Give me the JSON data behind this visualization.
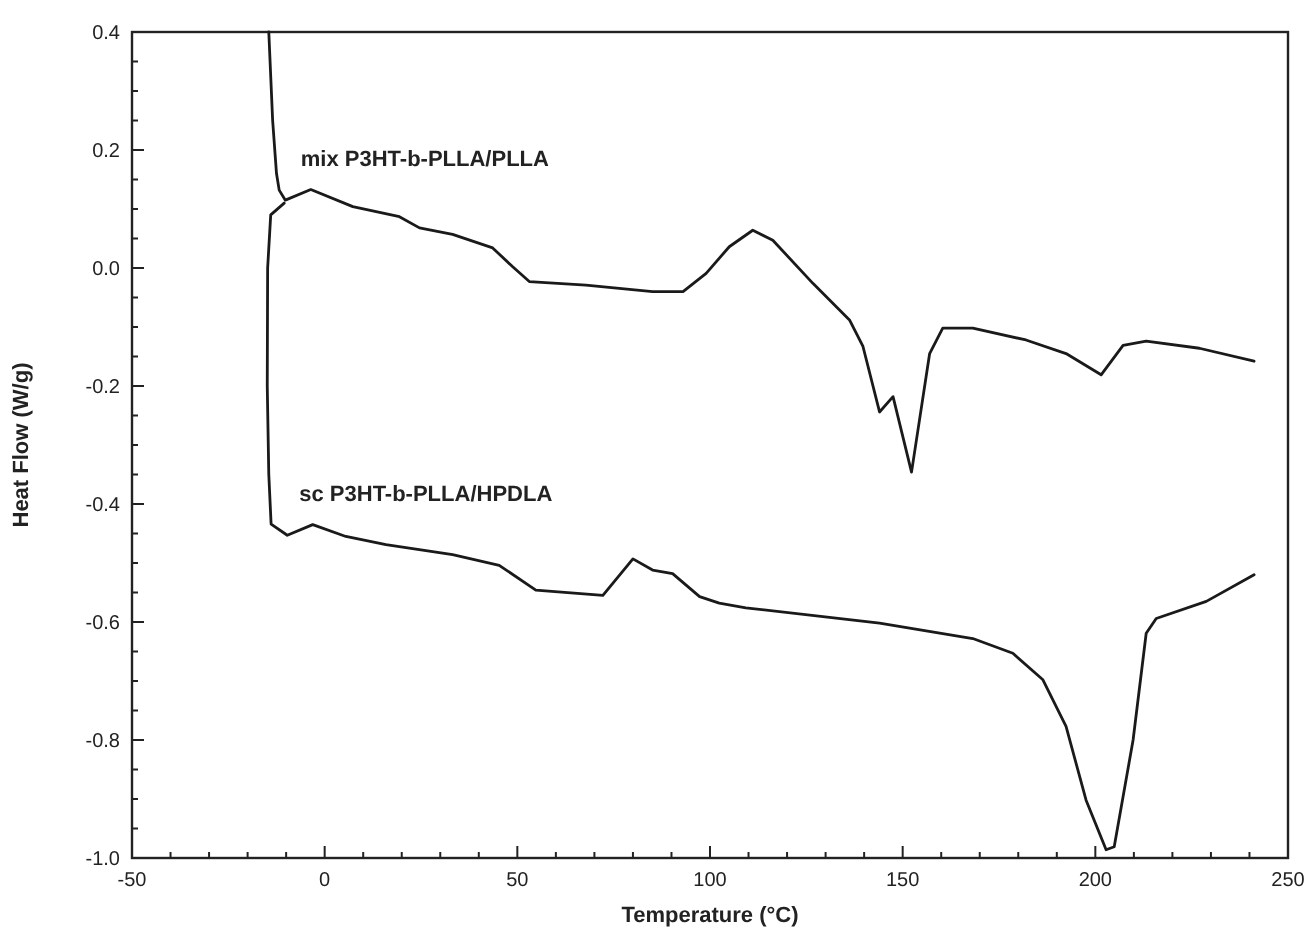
{
  "chart_data": {
    "type": "line",
    "xlabel": "Temperature (°C)",
    "ylabel": "Heat Flow (W/g)",
    "xlim": [
      -50,
      250
    ],
    "xticks": [
      -50,
      {
        "value": -40,
        "label": null
      },
      {
        "value": -30,
        "label": null
      },
      {
        "value": -20,
        "label": null
      },
      {
        "value": -10,
        "label": null
      },
      0,
      {
        "value": 10,
        "label": null
      },
      {
        "value": 20,
        "label": null
      },
      {
        "value": 30,
        "label": null
      },
      {
        "value": 40,
        "label": null
      },
      50,
      {
        "value": 60,
        "label": null
      },
      {
        "value": 70,
        "label": null
      },
      {
        "value": 80,
        "label": null
      },
      {
        "value": 90,
        "label": null
      },
      100,
      {
        "value": 110,
        "label": null
      },
      {
        "value": 120,
        "label": null
      },
      {
        "value": 130,
        "label": null
      },
      {
        "value": 140,
        "label": null
      },
      150,
      {
        "value": 160,
        "label": null
      },
      {
        "value": 170,
        "label": null
      },
      {
        "value": 180,
        "label": null
      },
      {
        "value": 190,
        "label": null
      },
      200,
      {
        "value": 210,
        "label": null
      },
      {
        "value": 220,
        "label": null
      },
      {
        "value": 230,
        "label": null
      },
      {
        "value": 240,
        "label": null
      },
      250
    ],
    "ylim": [
      -1.0,
      0.4
    ],
    "yticks": [
      {
        "value": -1.0,
        "label": "-1.0"
      },
      {
        "value": -0.95,
        "label": null
      },
      {
        "value": -0.9,
        "label": null
      },
      {
        "value": -0.85,
        "label": null
      },
      {
        "value": -0.8,
        "label": "-0.8"
      },
      {
        "value": -0.75,
        "label": null
      },
      {
        "value": -0.7,
        "label": null
      },
      {
        "value": -0.65,
        "label": null
      },
      {
        "value": -0.6,
        "label": "-0.6"
      },
      {
        "value": -0.55,
        "label": null
      },
      {
        "value": -0.5,
        "label": null
      },
      {
        "value": -0.45,
        "label": null
      },
      {
        "value": -0.4,
        "label": "-0.4"
      },
      {
        "value": -0.35,
        "label": null
      },
      {
        "value": -0.3,
        "label": null
      },
      {
        "value": -0.25,
        "label": null
      },
      {
        "value": -0.2,
        "label": "-0.2"
      },
      {
        "value": -0.15,
        "label": null
      },
      {
        "value": -0.1,
        "label": null
      },
      {
        "value": -0.05,
        "label": null
      },
      {
        "value": 0,
        "label": "0.0"
      },
      {
        "value": 0.05,
        "label": null
      },
      {
        "value": 0.1,
        "label": null
      },
      {
        "value": 0.15,
        "label": null
      },
      {
        "value": 0.2,
        "label": "0.2"
      },
      {
        "value": 0.25,
        "label": null
      },
      {
        "value": 0.3,
        "label": null
      },
      {
        "value": 0.35,
        "label": null
      },
      {
        "value": 0.4,
        "label": "0.4"
      }
    ],
    "grid": false,
    "marker": "none",
    "line_style": "solid",
    "series": [
      {
        "name": "mix P3HT-b-PLLA/PLLA",
        "color": "#1a1a1a",
        "x": [
          -14.5,
          -13.5,
          -12.5,
          -11.8,
          -10.2,
          -3.6,
          7.3,
          19.4,
          24.6,
          33.2,
          43.6,
          48.8,
          53.1,
          67.8,
          85.1,
          93,
          99,
          105,
          111.1,
          116.3,
          126.7,
          136.2,
          139.7,
          144,
          147.5,
          152.3,
          157,
          160.4,
          168.2,
          182,
          192.4,
          201.5,
          207.2,
          213.2,
          227,
          241.2
        ],
        "values": [
          0.4,
          0.25,
          0.16,
          0.132,
          0.115,
          0.133,
          0.104,
          0.087,
          0.068,
          0.057,
          0.034,
          0.002,
          -0.023,
          -0.029,
          -0.04,
          -0.04,
          -0.009,
          0.036,
          0.064,
          0.047,
          -0.026,
          -0.088,
          -0.133,
          -0.244,
          -0.218,
          -0.346,
          -0.145,
          -0.102,
          -0.102,
          -0.122,
          -0.145,
          -0.181,
          -0.131,
          -0.124,
          -0.136,
          -0.158
        ]
      },
      {
        "name": "sc P3HT-b-PLLA/HPDLA",
        "color": "#1a1a1a",
        "x": [
          -10.5,
          -14,
          -14.8,
          -14.9,
          -14.5,
          -13.9,
          -9.7,
          -3.1,
          5.5,
          15.9,
          33.2,
          45.3,
          54.8,
          72.2,
          80,
          85.1,
          90.3,
          97.3,
          102.4,
          109.3,
          144,
          168.2,
          178.6,
          186.4,
          192.4,
          197.6,
          202.8,
          204.9,
          209.8,
          213.2,
          215.8,
          228.8,
          241.2
        ],
        "values": [
          0.11,
          0.09,
          0.0,
          -0.2,
          -0.35,
          -0.434,
          -0.453,
          -0.435,
          -0.455,
          -0.469,
          -0.486,
          -0.504,
          -0.546,
          -0.555,
          -0.493,
          -0.512,
          -0.518,
          -0.557,
          -0.568,
          -0.576,
          -0.602,
          -0.628,
          -0.653,
          -0.698,
          -0.777,
          -0.902,
          -0.986,
          -0.981,
          -0.8,
          -0.619,
          -0.594,
          -0.565,
          -0.52
        ]
      }
    ]
  }
}
